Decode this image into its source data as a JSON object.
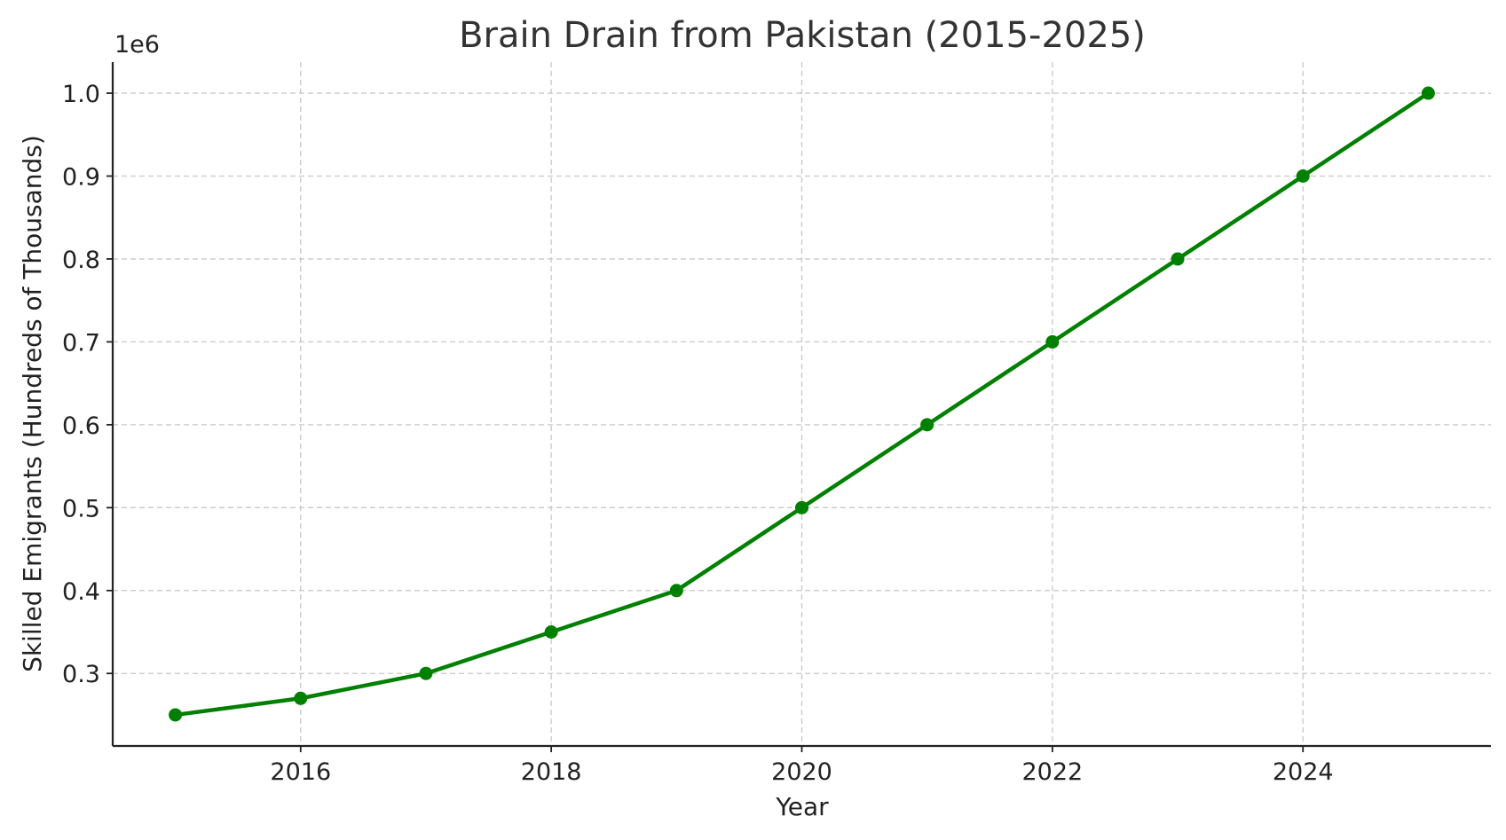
{
  "chart_data": {
    "type": "line",
    "title": "Brain Drain from Pakistan (2015-2025)",
    "xlabel": "Year",
    "ylabel": "Skilled Emigrants (Hundreds of Thousands)",
    "y_offset_label": "1e6",
    "x": [
      2015,
      2016,
      2017,
      2018,
      2019,
      2020,
      2021,
      2022,
      2023,
      2024,
      2025
    ],
    "series": [
      {
        "values": [
          250000,
          270000,
          300000,
          350000,
          400000,
          500000,
          600000,
          700000,
          800000,
          900000,
          1000000
        ],
        "color": "#008000",
        "marker": "circle"
      }
    ],
    "xlim": [
      2014.5,
      2025.5
    ],
    "ylim": [
      212500,
      1037500
    ],
    "x_ticks": [
      {
        "value": 2016,
        "label": "2016"
      },
      {
        "value": 2018,
        "label": "2018"
      },
      {
        "value": 2020,
        "label": "2020"
      },
      {
        "value": 2022,
        "label": "2022"
      },
      {
        "value": 2024,
        "label": "2024"
      }
    ],
    "y_ticks": [
      {
        "value": 300000,
        "label": "0.3"
      },
      {
        "value": 400000,
        "label": "0.4"
      },
      {
        "value": 500000,
        "label": "0.5"
      },
      {
        "value": 600000,
        "label": "0.6"
      },
      {
        "value": 700000,
        "label": "0.7"
      },
      {
        "value": 800000,
        "label": "0.8"
      },
      {
        "value": 900000,
        "label": "0.9"
      },
      {
        "value": 1000000,
        "label": "1.0"
      }
    ],
    "grid": true,
    "grid_style": "dashed",
    "legend": "none"
  }
}
